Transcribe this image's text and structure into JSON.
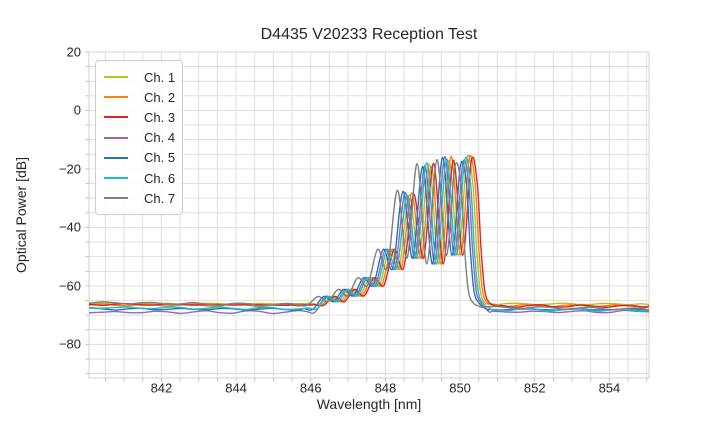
{
  "figure": {
    "title": "D4435 V20233 Reception Test",
    "xlabel": "Wavelength [nm]",
    "ylabel": "Optical Power [dB]"
  },
  "legend": {
    "position": "upper left",
    "entries": [
      {
        "label": "Ch. 1",
        "color": "#bcbd22"
      },
      {
        "label": "Ch. 2",
        "color": "#ff7f0e"
      },
      {
        "label": "Ch. 3",
        "color": "#d62728"
      },
      {
        "label": "Ch. 4",
        "color": "#9467bd"
      },
      {
        "label": "Ch. 5",
        "color": "#1f77b4"
      },
      {
        "label": "Ch. 6",
        "color": "#17becf"
      },
      {
        "label": "Ch. 7",
        "color": "#7f7f7f"
      }
    ]
  },
  "chart_data": {
    "type": "line",
    "title": "D4435 V20233 Reception Test",
    "xlabel": "Wavelength [nm]",
    "ylabel": "Optical Power [dB]",
    "xlim": [
      840.06,
      855.06
    ],
    "ylim": [
      -91.5,
      20
    ],
    "xticks": [
      842,
      844,
      846,
      848,
      850,
      852,
      854
    ],
    "yticks": [
      20,
      0,
      -20,
      -40,
      -60,
      -80
    ],
    "grid": {
      "x_step_nm": 0.5,
      "y_step_db": 5,
      "color": "#dcdcdc",
      "spine_color": "#d0d0d0",
      "tick_color": "#bbbbbb"
    },
    "noise_floor_db": -67,
    "peak_power_db": -16,
    "base_spectrum": {
      "description": "Canonical channel spectrum: alternating lobe peaks and nulls of the modulated optical signal between 846 nm and 850.9 nm; flat noise floor elsewhere.",
      "peak_indices": [
        10,
        12,
        14,
        16
      ],
      "points": [
        [
          845.95,
          -66.6
        ],
        [
          846.18,
          -66.9
        ],
        [
          846.48,
          -63.6
        ],
        [
          846.74,
          -65.4
        ],
        [
          847.01,
          -61.2
        ],
        [
          847.27,
          -63.4
        ],
        [
          847.54,
          -57.2
        ],
        [
          847.8,
          -59.8
        ],
        [
          848.07,
          -47.5
        ],
        [
          848.33,
          -53.8
        ],
        [
          848.6,
          -28.5
        ],
        [
          848.86,
          -50.5
        ],
        [
          849.13,
          -18.6
        ],
        [
          849.39,
          -52.5
        ],
        [
          849.66,
          -16.3
        ],
        [
          849.91,
          -49.5
        ],
        [
          850.14,
          -17.6
        ],
        [
          850.3,
          -25.0
        ],
        [
          850.4,
          -47.0
        ],
        [
          850.5,
          -61.5
        ],
        [
          850.63,
          -65.8
        ],
        [
          850.85,
          -66.8
        ]
      ]
    },
    "series": [
      {
        "name": "Ch. 1",
        "color": "#bcbd22",
        "shift_nm": 0.04,
        "floor_left_db": -66.1,
        "floor_right_db": -66.2,
        "peak_adjust_db": [
          -0.4,
          0.3,
          -0.8,
          1.2
        ]
      },
      {
        "name": "Ch. 2",
        "color": "#ff7f0e",
        "shift_nm": 0.1,
        "floor_left_db": -66.5,
        "floor_right_db": -66.8,
        "peak_adjust_db": [
          0.3,
          -0.5,
          0.6,
          1.0
        ]
      },
      {
        "name": "Ch. 3",
        "color": "#d62728",
        "shift_nm": 0.16,
        "floor_left_db": -66.3,
        "floor_right_db": -67.0,
        "peak_adjust_db": [
          -0.2,
          0.5,
          -0.7,
          0.4
        ]
      },
      {
        "name": "Ch. 4",
        "color": "#9467bd",
        "shift_nm": -0.07,
        "floor_left_db": -69.0,
        "floor_right_db": -68.8,
        "peak_adjust_db": [
          0.4,
          -0.3,
          0.5,
          -0.6
        ]
      },
      {
        "name": "Ch. 5",
        "color": "#1f77b4",
        "shift_nm": -0.13,
        "floor_left_db": -67.9,
        "floor_right_db": -68.1,
        "peak_adjust_db": [
          0.8,
          -0.6,
          0.2,
          -1.2
        ]
      },
      {
        "name": "Ch. 6",
        "color": "#17becf",
        "shift_nm": -0.02,
        "floor_left_db": -67.4,
        "floor_right_db": -68.3,
        "peak_adjust_db": [
          -0.5,
          0.7,
          -0.3,
          0.3
        ]
      },
      {
        "name": "Ch. 7",
        "color": "#7f7f7f",
        "shift_nm": -0.28,
        "floor_left_db": -65.7,
        "floor_right_db": -67.9,
        "peak_adjust_db": [
          1.2,
          0.4,
          -0.5,
          -1.8
        ]
      }
    ]
  }
}
